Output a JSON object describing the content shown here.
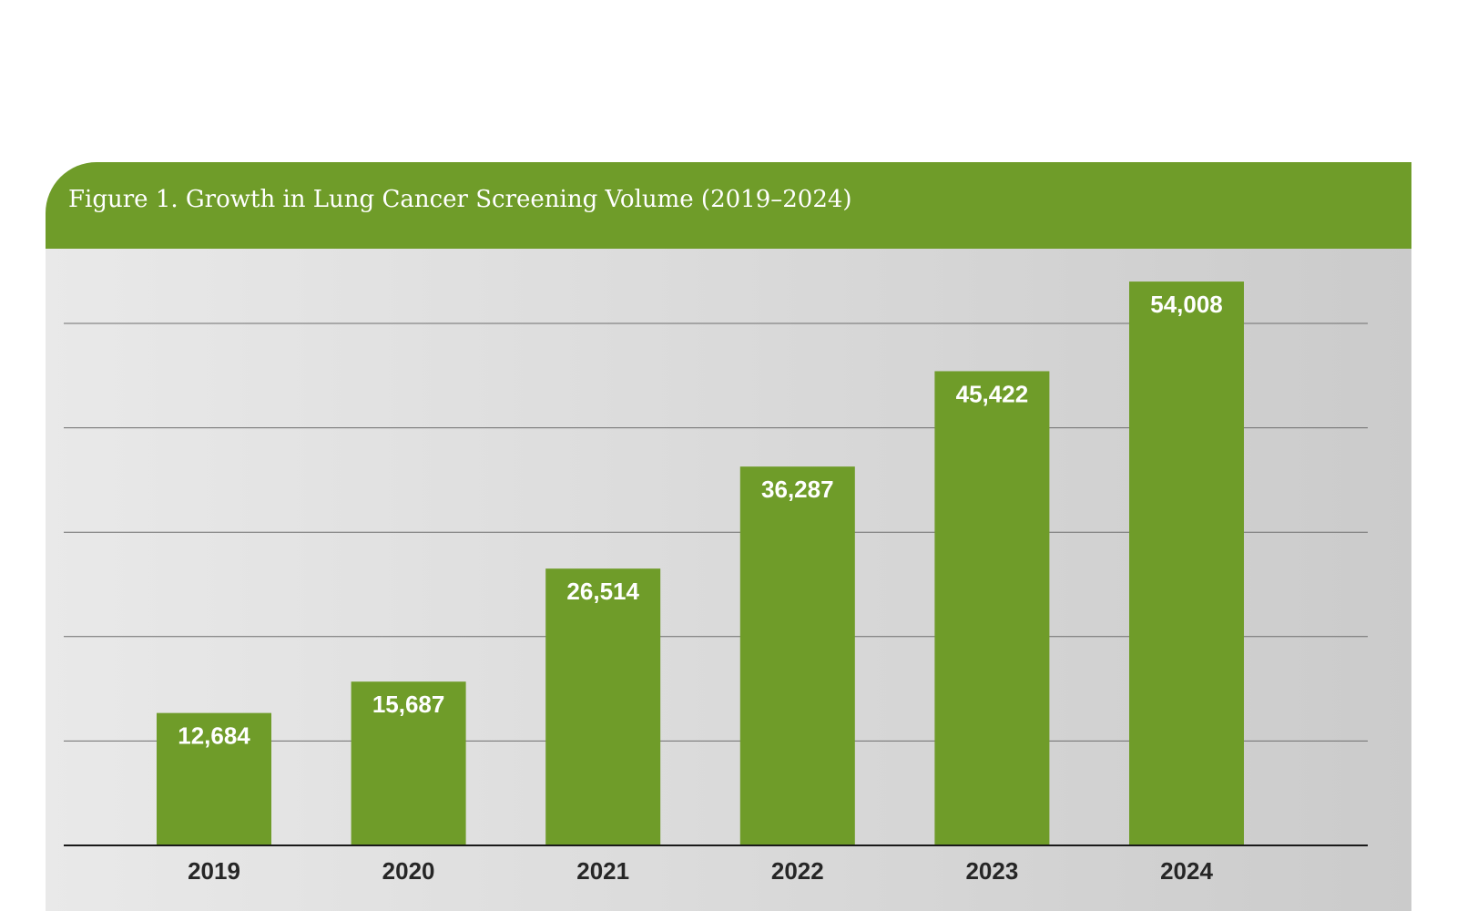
{
  "chart_data": {
    "type": "bar",
    "title": "Figure 1. Growth in Lung Cancer Screening Volume (2019–2024)",
    "categories": [
      "2019",
      "2020",
      "2021",
      "2022",
      "2023",
      "2024"
    ],
    "values": [
      12684,
      15687,
      26514,
      36287,
      45422,
      54008
    ],
    "value_labels": [
      "12,684",
      "15,687",
      "26,514",
      "36,287",
      "45,422",
      "54,008"
    ],
    "xlabel": "",
    "ylabel": "",
    "ylim": [
      0,
      50000
    ],
    "gridlines": [
      10000,
      20000,
      30000,
      40000,
      50000
    ],
    "grid": true,
    "bar_color": "#6f9c29",
    "header_color": "#6f9c29"
  }
}
